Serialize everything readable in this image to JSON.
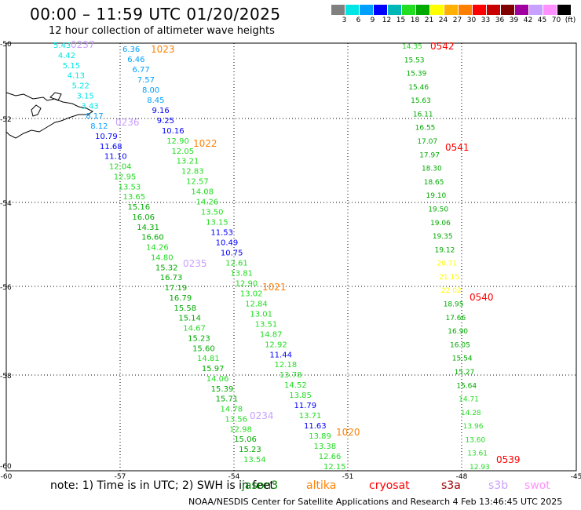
{
  "title": "00:00 – 11:59 UTC 01/20/2025",
  "subtitle": "12 hour collection of altimeter wave heights",
  "colorbar": {
    "colors": [
      "#808080",
      "#00e5e5",
      "#00a0ff",
      "#0000ff",
      "#00b7b7",
      "#22dd22",
      "#00aa00",
      "#ffff00",
      "#ffb000",
      "#ff8000",
      "#ff0000",
      "#c80000",
      "#800000",
      "#a000a0",
      "#c8a0ff",
      "#ff90ff",
      "#000000"
    ],
    "labels": [
      "3",
      "6",
      "9",
      "12",
      "15",
      "18",
      "21",
      "24",
      "27",
      "30",
      "33",
      "36",
      "39",
      "42",
      "45",
      "70",
      "(ft)"
    ]
  },
  "axes": {
    "lon_labels": [
      "-60",
      "-57",
      "-54",
      "-51",
      "-48",
      "-45"
    ],
    "lat_labels": [
      "-50",
      "-52",
      "-54",
      "-56",
      "-58",
      "-60"
    ]
  },
  "tracks": [
    {
      "time": "0237",
      "color": "#c8a0ff",
      "values": [
        [
          "5.43",
          "#00e5e5"
        ],
        [
          "4.42",
          "#00e5e5"
        ],
        [
          "5.15",
          "#00e5e5"
        ],
        [
          "4.13",
          "#00e5e5"
        ],
        [
          "5.22",
          "#00e5e5"
        ],
        [
          "3.15",
          "#00e5e5"
        ],
        [
          "3.43",
          "#00e5e5"
        ],
        [
          "8.17",
          "#00a0ff"
        ],
        [
          "8.12",
          "#00a0ff"
        ],
        [
          "10.79",
          "#0000ff"
        ],
        [
          "11.68",
          "#0000ff"
        ],
        [
          "11.10",
          "#0000ff"
        ],
        [
          "12.04",
          "#22dd22"
        ],
        [
          "12.95",
          "#22dd22"
        ],
        [
          "13.53",
          "#22dd22"
        ],
        [
          "13.65",
          "#22dd22"
        ],
        [
          "15.16",
          "#00aa00"
        ],
        [
          "16.06",
          "#00aa00"
        ],
        [
          "14.31",
          "#00aa00"
        ],
        [
          "16.60",
          "#00aa00"
        ],
        [
          "14.26",
          "#22dd22"
        ],
        [
          "14.80",
          "#22dd22"
        ],
        [
          "15.32",
          "#00aa00"
        ],
        [
          "16.73",
          "#00aa00"
        ],
        [
          "17.19",
          "#00aa00"
        ],
        [
          "16.79",
          "#00aa00"
        ],
        [
          "15.58",
          "#00aa00"
        ],
        [
          "15.14",
          "#00aa00"
        ],
        [
          "14.67",
          "#22dd22"
        ],
        [
          "15.23",
          "#00aa00"
        ],
        [
          "15.60",
          "#00aa00"
        ],
        [
          "14.81",
          "#22dd22"
        ],
        [
          "15.97",
          "#00aa00"
        ],
        [
          "14.06",
          "#22dd22"
        ],
        [
          "15.39",
          "#00aa00"
        ],
        [
          "15.71",
          "#00aa00"
        ],
        [
          "14.78",
          "#22dd22"
        ],
        [
          "13.56",
          "#22dd22"
        ],
        [
          "12.98",
          "#22dd22"
        ],
        [
          "15.06",
          "#00aa00"
        ],
        [
          "15.23",
          "#00aa00"
        ],
        [
          "13.54",
          "#22dd22"
        ]
      ]
    },
    {
      "time": "1023",
      "color": "#ff8000",
      "values": [
        [
          "6.36",
          "#00a0ff"
        ],
        [
          "6.46",
          "#00a0ff"
        ],
        [
          "6.77",
          "#00a0ff"
        ],
        [
          "7.57",
          "#00a0ff"
        ],
        [
          "8.00",
          "#00a0ff"
        ],
        [
          "8.45",
          "#00a0ff"
        ],
        [
          "9.16",
          "#0000ff"
        ],
        [
          "9.25",
          "#0000ff"
        ],
        [
          "10.16",
          "#0000ff"
        ],
        [
          "12.90",
          "#22dd22"
        ],
        [
          "12.05",
          "#22dd22"
        ],
        [
          "13.21",
          "#22dd22"
        ],
        [
          "12.83",
          "#22dd22"
        ],
        [
          "12.57",
          "#22dd22"
        ],
        [
          "14.08",
          "#22dd22"
        ],
        [
          "14.26",
          "#22dd22"
        ],
        [
          "13.50",
          "#22dd22"
        ],
        [
          "13.15",
          "#22dd22"
        ],
        [
          "11.53",
          "#0000ff"
        ],
        [
          "10.49",
          "#0000ff"
        ],
        [
          "10.75",
          "#0000ff"
        ],
        [
          "12.61",
          "#22dd22"
        ],
        [
          "13.81",
          "#22dd22"
        ],
        [
          "12.90",
          "#22dd22"
        ],
        [
          "13.02",
          "#22dd22"
        ],
        [
          "12.84",
          "#22dd22"
        ],
        [
          "13.01",
          "#22dd22"
        ],
        [
          "13.51",
          "#22dd22"
        ],
        [
          "14.87",
          "#22dd22"
        ],
        [
          "12.92",
          "#22dd22"
        ],
        [
          "11.44",
          "#0000ff"
        ],
        [
          "12.18",
          "#22dd22"
        ],
        [
          "13.78",
          "#22dd22"
        ],
        [
          "14.52",
          "#22dd22"
        ],
        [
          "13.85",
          "#22dd22"
        ],
        [
          "11.79",
          "#0000ff"
        ],
        [
          "13.71",
          "#22dd22"
        ],
        [
          "11.63",
          "#0000ff"
        ],
        [
          "13.89",
          "#22dd22"
        ],
        [
          "13.38",
          "#22dd22"
        ],
        [
          "12.66",
          "#22dd22"
        ],
        [
          "12.15",
          "#22dd22"
        ]
      ]
    },
    {
      "time": "0542",
      "color": "#ff0000",
      "values": [
        [
          "14.35",
          "#22dd22"
        ],
        [
          "15.53",
          "#00aa00"
        ],
        [
          "15.39",
          "#00aa00"
        ],
        [
          "15.46",
          "#00aa00"
        ],
        [
          "15.63",
          "#00aa00"
        ],
        [
          "16.11",
          "#00aa00"
        ],
        [
          "16.55",
          "#00aa00"
        ],
        [
          "17.07",
          "#00aa00"
        ],
        [
          "17.97",
          "#00aa00"
        ],
        [
          "18.30",
          "#00aa00"
        ],
        [
          "18.65",
          "#00aa00"
        ],
        [
          "19.10",
          "#00aa00"
        ],
        [
          "19.50",
          "#00aa00"
        ],
        [
          "19.06",
          "#00aa00"
        ],
        [
          "19.35",
          "#00aa00"
        ],
        [
          "19.12",
          "#00aa00"
        ],
        [
          "20.71",
          "#ffff00"
        ],
        [
          "21.15",
          "#ffff00"
        ],
        [
          "22.02",
          "#ffff00"
        ],
        [
          "18.95",
          "#00aa00"
        ],
        [
          "17.66",
          "#00aa00"
        ],
        [
          "16.90",
          "#00aa00"
        ],
        [
          "16.05",
          "#00aa00"
        ],
        [
          "15.54",
          "#00aa00"
        ],
        [
          "15.27",
          "#00aa00"
        ],
        [
          "15.64",
          "#00aa00"
        ],
        [
          "14.71",
          "#22dd22"
        ],
        [
          "14.28",
          "#22dd22"
        ],
        [
          "13.96",
          "#22dd22"
        ],
        [
          "13.60",
          "#22dd22"
        ],
        [
          "13.61",
          "#22dd22"
        ],
        [
          "12.93",
          "#22dd22"
        ]
      ]
    }
  ],
  "pass_labels": [
    {
      "text": "0237",
      "color": "#c8a0ff"
    },
    {
      "text": "0236",
      "color": "#c8a0ff"
    },
    {
      "text": "0235",
      "color": "#c8a0ff"
    },
    {
      "text": "0234",
      "color": "#c8a0ff"
    },
    {
      "text": "1023",
      "color": "#ff8000"
    },
    {
      "text": "1022",
      "color": "#ff8000"
    },
    {
      "text": "1021",
      "color": "#ff8000"
    },
    {
      "text": "1020",
      "color": "#ff8000"
    },
    {
      "text": "0542",
      "color": "#ff0000"
    },
    {
      "text": "0541",
      "color": "#ff0000"
    },
    {
      "text": "0540",
      "color": "#ff0000"
    },
    {
      "text": "0539",
      "color": "#ff0000"
    }
  ],
  "note": "note: 1) Time is in UTC; 2) SWH is in feet",
  "satellites": [
    {
      "name": "jason3",
      "color": "#008000"
    },
    {
      "name": "altika",
      "color": "#ff8000"
    },
    {
      "name": "cryosat",
      "color": "#ff0000"
    },
    {
      "name": "s3a",
      "color": "#a00000"
    },
    {
      "name": "s3b",
      "color": "#c8a0ff"
    },
    {
      "name": "swot",
      "color": "#ff90ff"
    }
  ],
  "footer": "NOAA/NESDIS Center for Satellite Applications and Research    4 Feb 13:46:45 UTC 2025"
}
